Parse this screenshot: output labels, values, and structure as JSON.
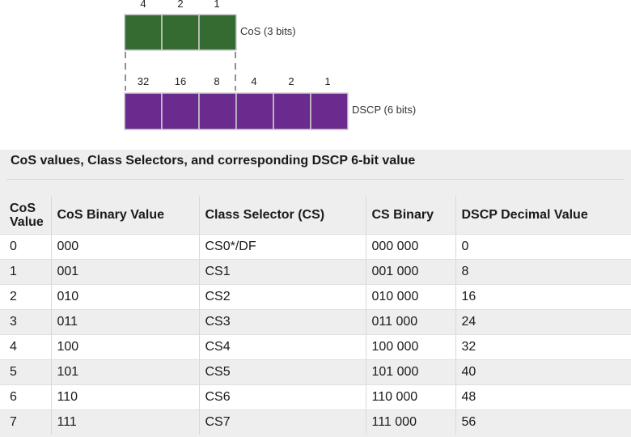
{
  "diagram": {
    "cos": {
      "label": "CoS (3 bits)",
      "bit_weights": [
        "4",
        "2",
        "1"
      ],
      "color": "#346b30"
    },
    "dscp": {
      "label": "DSCP (6 bits)",
      "bit_weights": [
        "32",
        "16",
        "8",
        "4",
        "2",
        "1"
      ],
      "color": "#6b2a8e"
    }
  },
  "table": {
    "caption": "CoS values, Class Selectors, and corresponding DSCP 6-bit value",
    "headers": [
      "CoS\nValue",
      "CoS Binary Value",
      "Class Selector (CS)",
      "CS Binary",
      "DSCP Decimal Value"
    ],
    "rows": [
      [
        "0",
        "000",
        "CS0*/DF",
        "000 000",
        "0"
      ],
      [
        "1",
        "001",
        "CS1",
        "001 000",
        "8"
      ],
      [
        "2",
        "010",
        "CS2",
        "010 000",
        "16"
      ],
      [
        "3",
        "011",
        "CS3",
        "011 000",
        "24"
      ],
      [
        "4",
        "100",
        "CS4",
        "100 000",
        "32"
      ],
      [
        "5",
        "101",
        "CS5",
        "101 000",
        "40"
      ],
      [
        "6",
        "110",
        "CS6",
        "110 000",
        "48"
      ],
      [
        "7",
        "111",
        "CS7",
        "111 000",
        "56"
      ]
    ]
  }
}
